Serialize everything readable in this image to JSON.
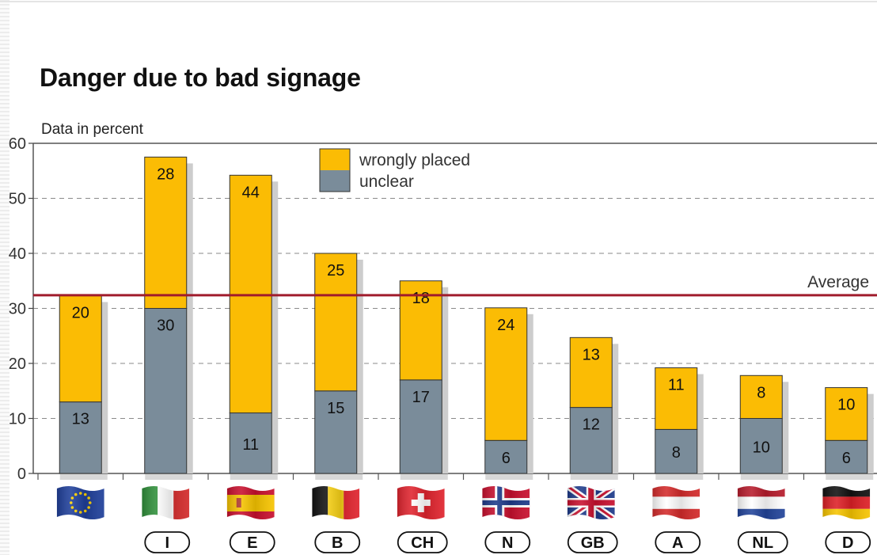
{
  "chart_data": {
    "type": "bar",
    "stacked": true,
    "title": "Danger due to bad signage",
    "ylabel": "Data in percent",
    "ylim": [
      0,
      60
    ],
    "yticks": [
      0,
      10,
      20,
      30,
      40,
      50,
      60
    ],
    "categories": [
      "EU",
      "I",
      "E",
      "B",
      "CH",
      "N",
      "GB",
      "A",
      "NL",
      "D"
    ],
    "category_labels": [
      "",
      "I",
      "E",
      "B",
      "CH",
      "N",
      "GB",
      "A",
      "NL",
      "D"
    ],
    "series": [
      {
        "name": "unclear",
        "color": "#7a8c9a",
        "values": [
          13,
          30,
          11,
          15,
          17,
          6,
          12,
          8,
          10,
          6
        ]
      },
      {
        "name": "wrongly placed",
        "color": "#fbbc04",
        "values": [
          20,
          28,
          44,
          25,
          18,
          24,
          13,
          11,
          8,
          10
        ]
      }
    ],
    "segment_labels": {
      "unclear": [
        "13",
        "30",
        "11",
        "15",
        "17",
        "6",
        "12",
        "8",
        "10",
        "6"
      ],
      "wrongly placed": [
        "20",
        "28",
        "44",
        "25",
        "18",
        "24",
        "13",
        "11",
        "8",
        "10"
      ]
    },
    "stack_heights": [
      32.3,
      57.5,
      54.2,
      40,
      35,
      30.1,
      24.7,
      19.2,
      17.8,
      15.6
    ],
    "average": {
      "value": 32.4,
      "label": "Average",
      "color": "#a01c2c"
    },
    "legend": {
      "position": "top-center",
      "items": [
        {
          "label": "wrongly placed",
          "color": "#fbbc04"
        },
        {
          "label": "unclear",
          "color": "#7a8c9a"
        }
      ]
    },
    "grid": true
  },
  "flag_icons": [
    "eu-flag-icon",
    "italy-flag-icon",
    "spain-flag-icon",
    "belgium-flag-icon",
    "switzerland-flag-icon",
    "norway-flag-icon",
    "uk-flag-icon",
    "austria-flag-icon",
    "netherlands-flag-icon",
    "germany-flag-icon"
  ]
}
